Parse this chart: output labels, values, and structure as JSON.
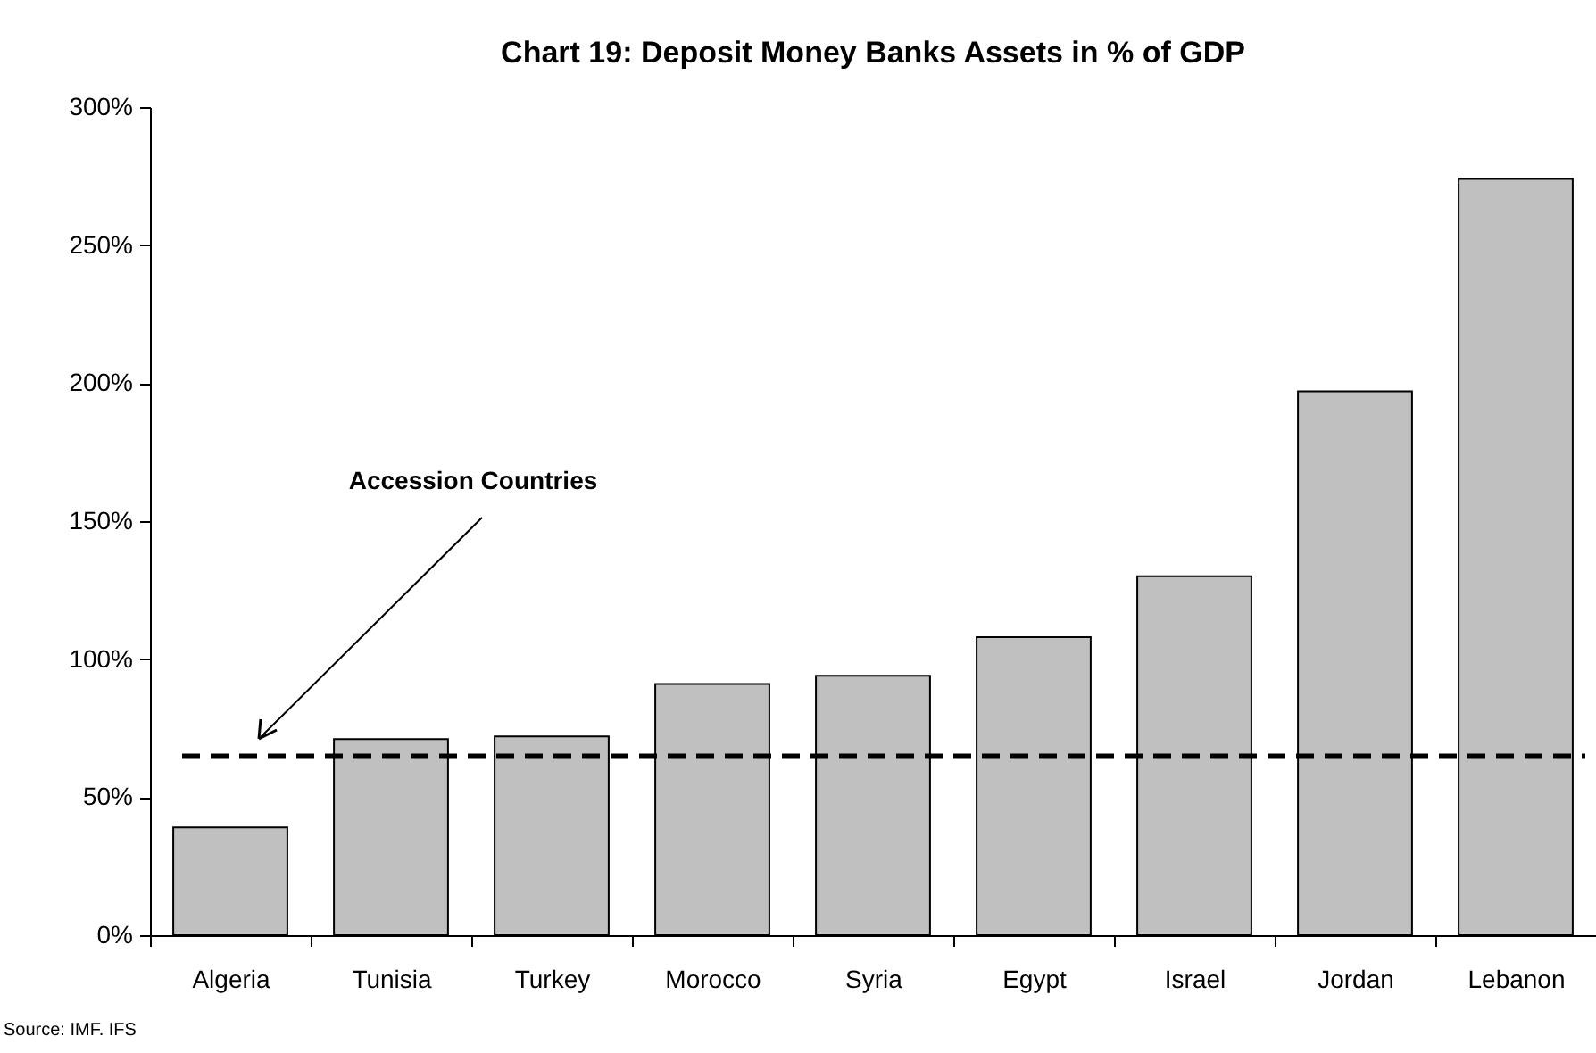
{
  "chart_data": {
    "type": "bar",
    "title": "Chart 19: Deposit Money Banks Assets in % of GDP",
    "categories": [
      "Algeria",
      "Tunisia",
      "Turkey",
      "Morocco",
      "Syria",
      "Egypt",
      "Israel",
      "Jordan",
      "Lebanon"
    ],
    "values": [
      39,
      71,
      72,
      91,
      94,
      108,
      130,
      197,
      274
    ],
    "color": "#c0c0c0",
    "ylim": [
      0,
      300
    ],
    "yticks": [
      {
        "value": 0,
        "label": "0%"
      },
      {
        "value": 50,
        "label": "50%"
      },
      {
        "value": 100,
        "label": "100%"
      },
      {
        "value": 150,
        "label": "150%"
      },
      {
        "value": 200,
        "label": "200%"
      },
      {
        "value": 250,
        "label": "250%"
      },
      {
        "value": 300,
        "label": "300%"
      }
    ],
    "ref_lines": [
      {
        "axis": "y",
        "value": 65,
        "label": "Accession Countries",
        "color": "#000000",
        "line_style": "dashed"
      }
    ],
    "annotations": [
      "Source: IMF. IFS"
    ],
    "grid": false
  }
}
